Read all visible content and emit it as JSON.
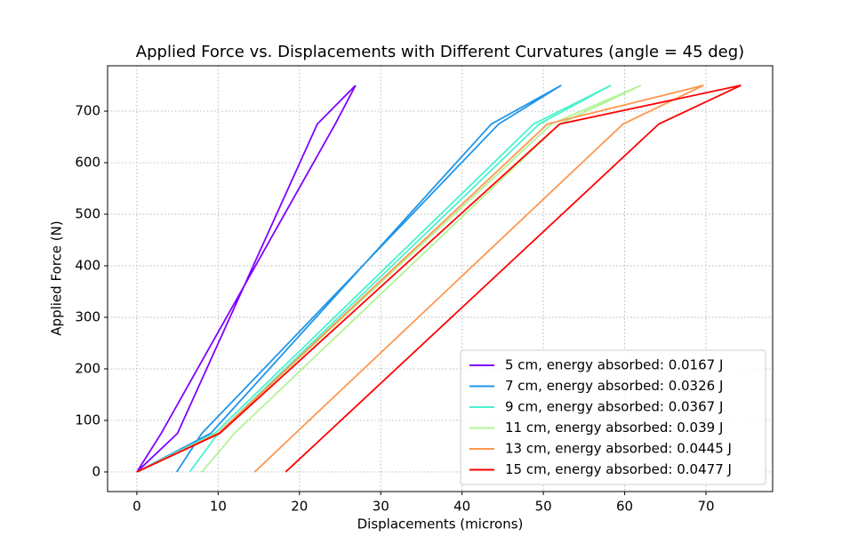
{
  "chart_data": {
    "type": "line",
    "title": "Applied Force vs. Displacements with Different Curvatures (angle = 45 deg)",
    "xlabel": "Displacements (microns)",
    "ylabel": "Applied Force (N)",
    "xlim": [
      -3.6,
      78.2
    ],
    "ylim": [
      -38,
      788
    ],
    "xticks": [
      0,
      10,
      20,
      30,
      40,
      50,
      60,
      70
    ],
    "yticks": [
      0,
      100,
      200,
      300,
      400,
      500,
      600,
      700
    ],
    "grid": true,
    "legend": "lower right",
    "series": [
      {
        "name": "5 cm, energy absorbed: 0.0167 J",
        "color": "#8000ff",
        "x": [
          0,
          5,
          22.2,
          26.9,
          24.4,
          3,
          0
        ],
        "values": [
          0,
          75,
          675,
          750,
          675,
          75,
          0
        ]
      },
      {
        "name": "7 cm, energy absorbed: 0.0326 J",
        "color": "#2196e8",
        "x": [
          0,
          9.1,
          43.6,
          52.2,
          44.5,
          8,
          4.9
        ],
        "values": [
          0,
          75,
          675,
          750,
          675,
          75,
          0
        ]
      },
      {
        "name": "9 cm, energy absorbed: 0.0367 J",
        "color": "#4cf2ce",
        "x": [
          0,
          9.6,
          48.8,
          58.3,
          49.5,
          10,
          6.5
        ],
        "values": [
          0,
          75,
          675,
          750,
          675,
          75,
          0
        ]
      },
      {
        "name": "11 cm, energy absorbed: 0.039 J",
        "color": "#b2f396",
        "x": [
          0,
          10,
          51,
          62,
          52,
          12,
          8
        ],
        "values": [
          0,
          75,
          675,
          750,
          675,
          75,
          0
        ]
      },
      {
        "name": "13 cm, energy absorbed: 0.0445 J",
        "color": "#ff9650",
        "x": [
          0,
          10,
          50.5,
          69.7,
          59.8,
          19.5,
          14.5
        ],
        "values": [
          0,
          75,
          675,
          750,
          675,
          75,
          0
        ]
      },
      {
        "name": "15 cm, energy absorbed: 0.0477 J",
        "color": "#ff0000",
        "x": [
          0,
          10.2,
          52,
          74.3,
          64.2,
          23.4,
          18.3
        ],
        "values": [
          0,
          75,
          675,
          750,
          675,
          75,
          0
        ]
      }
    ]
  }
}
